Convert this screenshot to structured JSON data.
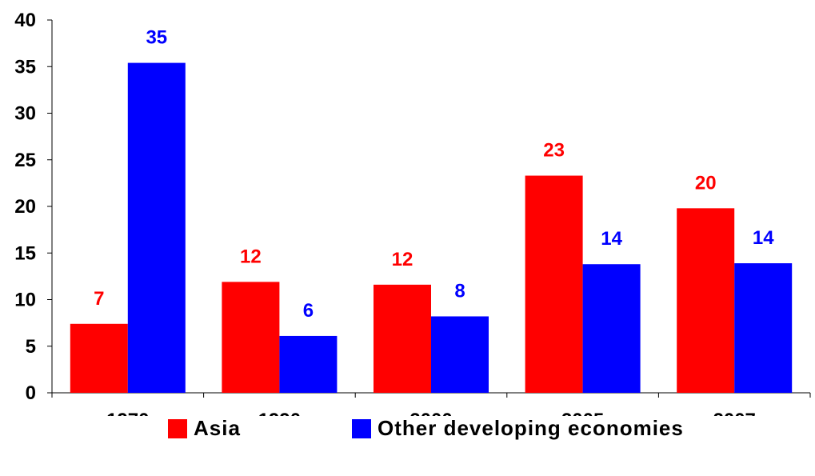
{
  "chart_data": {
    "type": "bar",
    "title": "",
    "xlabel": "",
    "ylabel": "",
    "categories": [
      "1970",
      "1990",
      "2000",
      "2005",
      "2007"
    ],
    "ylim": [
      0,
      40
    ],
    "yticks": [
      0,
      5,
      10,
      15,
      20,
      25,
      30,
      35,
      40
    ],
    "grid": false,
    "legend_position": "bottom",
    "series": [
      {
        "name": "Asia",
        "color": "#ff0000",
        "values": [
          7.4,
          11.9,
          11.6,
          23.3,
          19.8
        ],
        "labels": [
          "7",
          "12",
          "12",
          "23",
          "20"
        ]
      },
      {
        "name": "Other developing economies",
        "color": "#0000ff",
        "values": [
          35.4,
          6.1,
          8.2,
          13.8,
          13.9
        ],
        "labels": [
          "35",
          "6",
          "8",
          "14",
          "14"
        ]
      }
    ]
  }
}
